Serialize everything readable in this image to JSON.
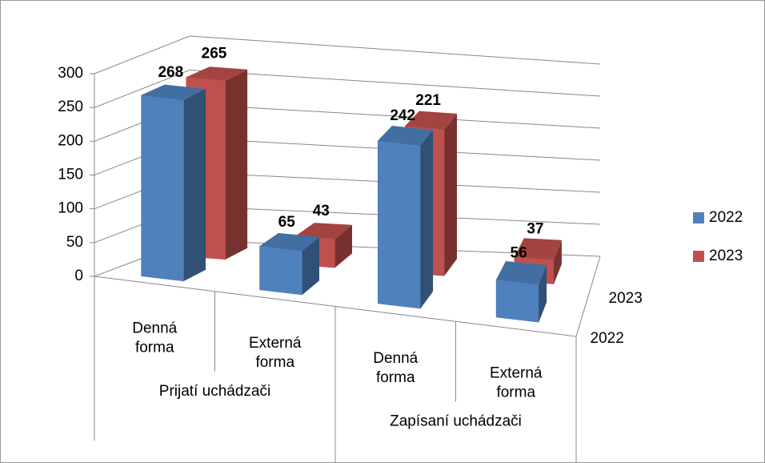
{
  "chart_data": {
    "type": "bar3d",
    "categories": [
      "Denná forma",
      "Externá forma",
      "Denná forma",
      "Externá forma"
    ],
    "groups": [
      "Prijatí uchádzači",
      "Zapísaní uchádzači"
    ],
    "series": [
      {
        "name": "2022",
        "color": "#4f81bd",
        "values": [
          268,
          65,
          242,
          56
        ]
      },
      {
        "name": "2023",
        "color": "#c0504d",
        "values": [
          265,
          43,
          221,
          37
        ]
      }
    ],
    "ylim": [
      0,
      300
    ],
    "yticks": [
      0,
      50,
      100,
      150,
      200,
      250,
      300
    ],
    "grid": true,
    "legend": "right"
  }
}
